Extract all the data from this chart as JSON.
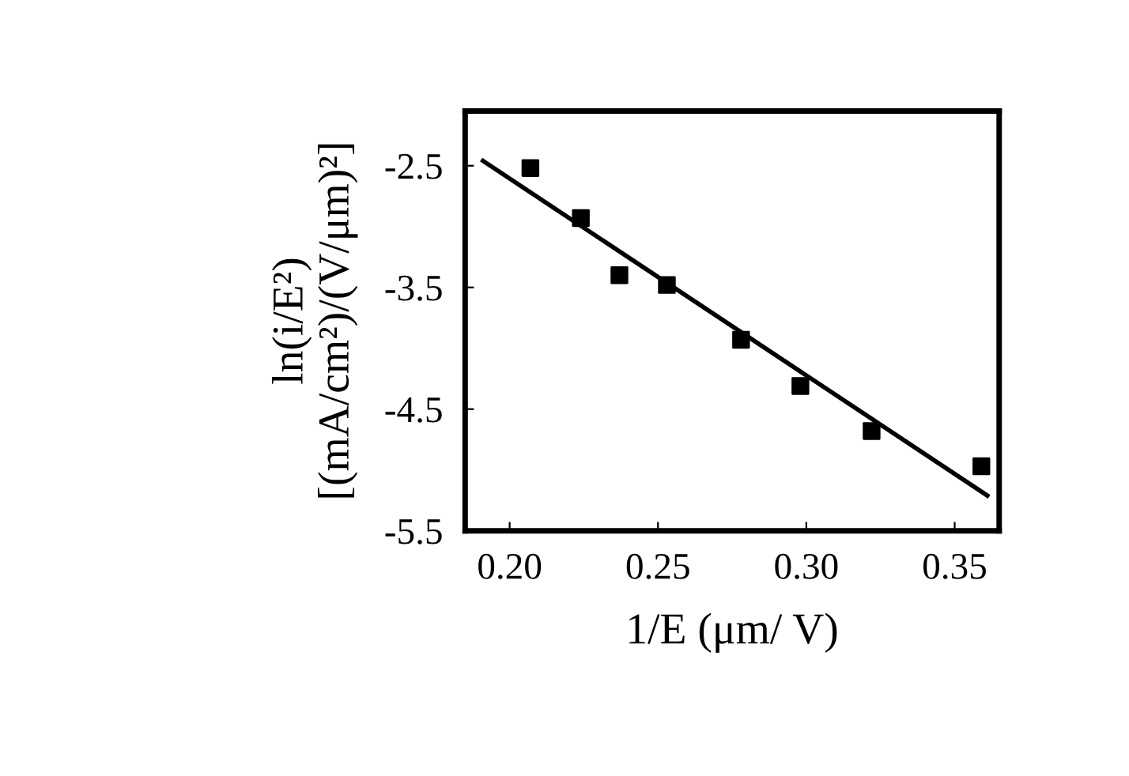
{
  "chart_data": {
    "type": "scatter",
    "xlabel": "1/E (μm/ V)",
    "ylabel": "ln(i/E²)\n[(mA/cm²)/(V/μm)²]",
    "series": [
      {
        "color": "#000000",
        "marker": "square",
        "x": [
          0.207,
          0.224,
          0.237,
          0.253,
          0.278,
          0.298,
          0.322,
          0.359
        ],
        "values": [
          -2.52,
          -2.93,
          -3.4,
          -3.48,
          -3.93,
          -4.31,
          -4.68,
          -4.97
        ]
      },
      {
        "type": "line",
        "color": "#000000",
        "marker": "none",
        "line_style": "solid",
        "x": [
          0.191,
          0.361
        ],
        "values": [
          -2.46,
          -5.21
        ]
      }
    ],
    "xlim": [
      0.185,
      0.365
    ],
    "ylim": [
      -5.5,
      -2.05
    ],
    "xticks": [
      {
        "value": 0.2,
        "label": "0.20"
      },
      {
        "value": 0.25,
        "label": "0.25"
      },
      {
        "value": 0.3,
        "label": "0.30"
      },
      {
        "value": 0.35,
        "label": "0.35"
      }
    ],
    "yticks": [
      -2.5,
      -3.5,
      -4.5,
      -5.5
    ],
    "grid": false,
    "legend": false
  }
}
